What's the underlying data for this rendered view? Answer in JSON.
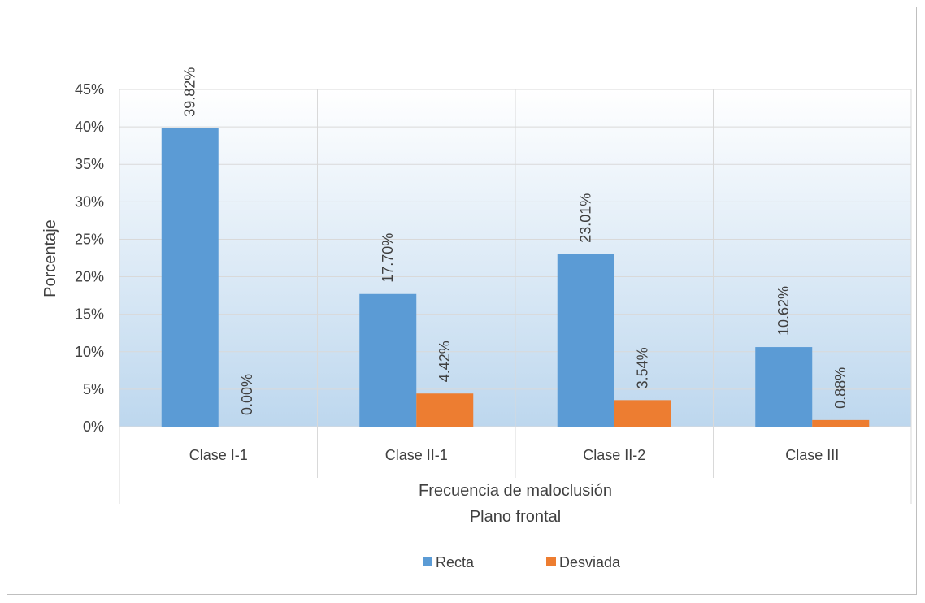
{
  "chart_data": {
    "type": "bar",
    "categories": [
      "Clase I-1",
      "Clase II-1",
      "Clase II-2",
      "Clase III"
    ],
    "series": [
      {
        "name": "Recta",
        "values": [
          39.82,
          17.7,
          23.01,
          10.62
        ],
        "labels": [
          "39.82%",
          "17.70%",
          "23.01%",
          "10.62%"
        ],
        "color": "#5b9bd5"
      },
      {
        "name": "Desviada",
        "values": [
          0.0,
          4.42,
          3.54,
          0.88
        ],
        "labels": [
          "0.00%",
          "4.42%",
          "3.54%",
          "0.88%"
        ],
        "color": "#ed7d31"
      }
    ],
    "ylabel": "Porcentaje",
    "xlabel_lines": [
      "Frecuencia de maloclusión",
      "Plano frontal"
    ],
    "ylim": [
      0,
      45
    ],
    "y_ticks": [
      0,
      5,
      10,
      15,
      20,
      25,
      30,
      35,
      40,
      45
    ],
    "y_tick_labels": [
      "0%",
      "5%",
      "10%",
      "15%",
      "20%",
      "25%",
      "30%",
      "35%",
      "40%",
      "45%"
    ],
    "grid": true,
    "legend_position": "bottom",
    "plot_gradient": [
      "#ffffff",
      "#bdd7ee"
    ]
  }
}
